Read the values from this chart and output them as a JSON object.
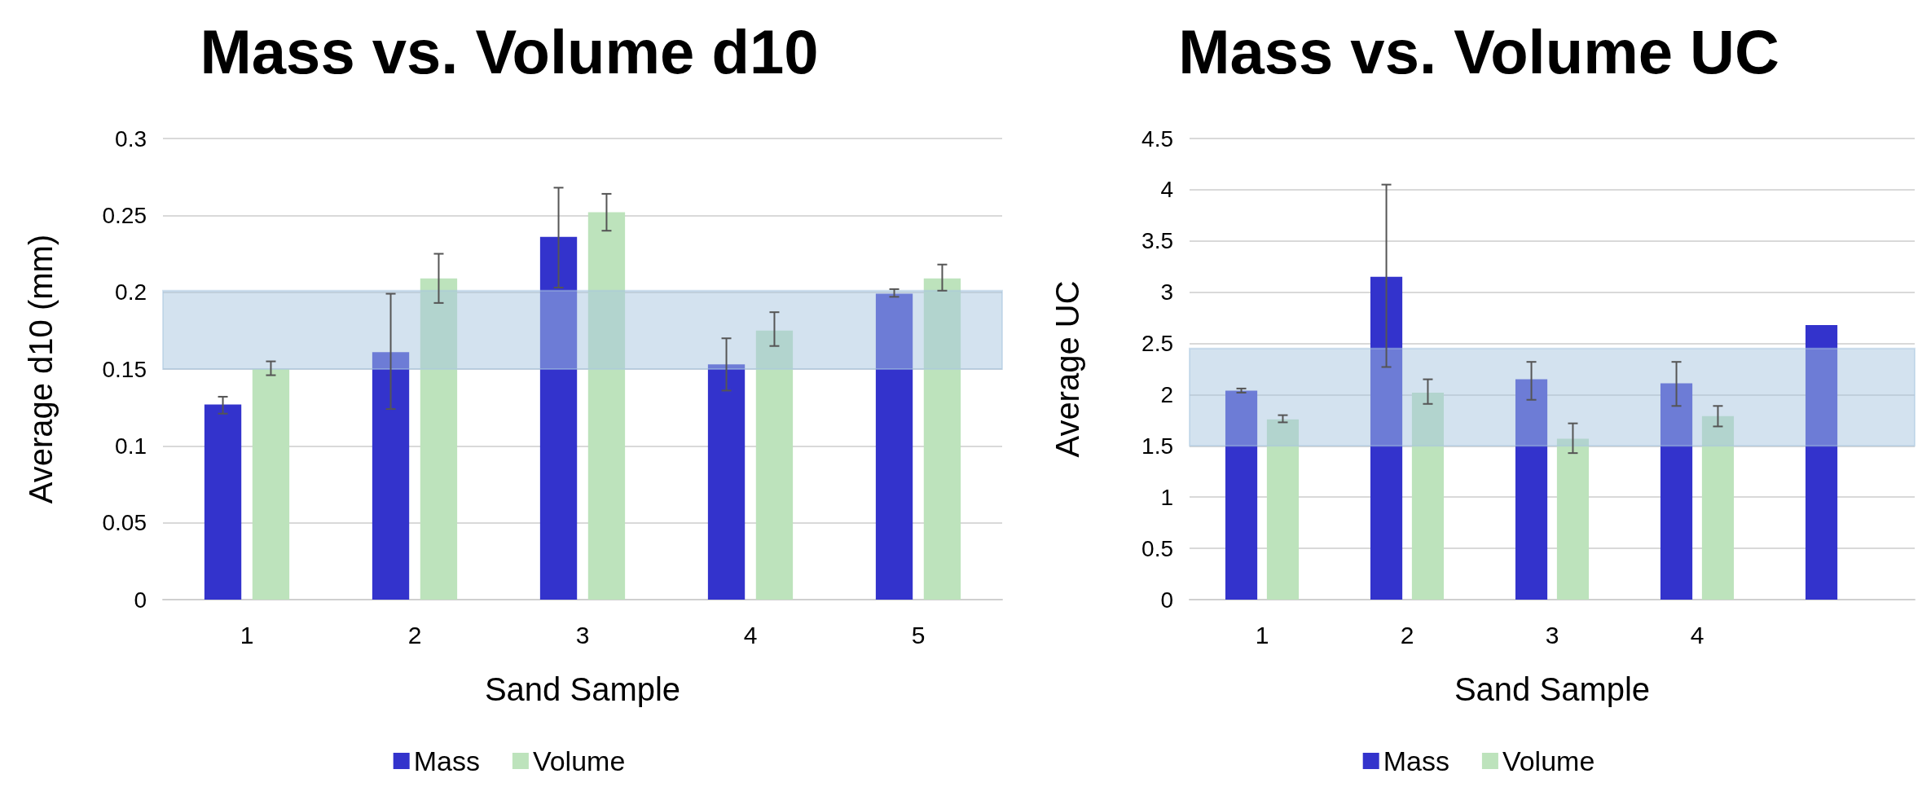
{
  "chart_data": [
    {
      "type": "bar",
      "title": "Mass vs. Volume d10",
      "xlabel": "Sand Sample",
      "ylabel": "Average d10 (mm)",
      "categories": [
        "1",
        "2",
        "3",
        "4",
        "5"
      ],
      "series": [
        {
          "name": "Mass",
          "color": "#3333cc",
          "values": [
            0.127,
            0.161,
            0.236,
            0.153,
            0.199
          ],
          "errors": [
            [
              0.121,
              0.132
            ],
            [
              0.124,
              0.199
            ],
            [
              0.203,
              0.268
            ],
            [
              0.136,
              0.17
            ],
            [
              0.197,
              0.202
            ]
          ]
        },
        {
          "name": "Volume",
          "color": "#bde3bc",
          "values": [
            0.15,
            0.209,
            0.252,
            0.175,
            0.209
          ],
          "errors": [
            [
              0.146,
              0.155
            ],
            [
              0.193,
              0.225
            ],
            [
              0.24,
              0.264
            ],
            [
              0.165,
              0.187
            ],
            [
              0.201,
              0.218
            ]
          ]
        }
      ],
      "ylim": [
        0,
        0.3
      ],
      "yticks": [
        0,
        0.05,
        0.1,
        0.15,
        0.2,
        0.25,
        0.3
      ],
      "grid": "y",
      "legend": "bottom",
      "bands": [
        {
          "axis": "y",
          "from": 0.15,
          "to": 0.201,
          "color": "#a8c6e0"
        }
      ]
    },
    {
      "type": "bar",
      "title": "Mass vs. Volume UC",
      "xlabel": "Sand Sample",
      "ylabel": "Average UC",
      "categories": [
        "1",
        "2",
        "3",
        "4",
        null
      ],
      "series": [
        {
          "name": "Mass",
          "color": "#3333cc",
          "values": [
            2.04,
            3.15,
            2.15,
            2.11,
            2.68
          ],
          "errors": [
            [
              2.02,
              2.06
            ],
            [
              2.27,
              4.05
            ],
            [
              1.95,
              2.32
            ],
            [
              1.89,
              2.32
            ],
            null
          ]
        },
        {
          "name": "Volume",
          "color": "#bde3bc",
          "values": [
            1.76,
            2.02,
            1.57,
            1.79,
            null
          ],
          "errors": [
            [
              1.73,
              1.8
            ],
            [
              1.91,
              2.15
            ],
            [
              1.43,
              1.72
            ],
            [
              1.69,
              1.89
            ],
            null
          ]
        }
      ],
      "ylim": [
        0,
        4.5
      ],
      "yticks": [
        0,
        0.5,
        1,
        1.5,
        2,
        2.5,
        3,
        3.5,
        4,
        4.5
      ],
      "grid": "y",
      "legend": "bottom",
      "bands": [
        {
          "axis": "y",
          "from": 1.5,
          "to": 2.45,
          "color": "#a8c6e0"
        }
      ]
    }
  ]
}
